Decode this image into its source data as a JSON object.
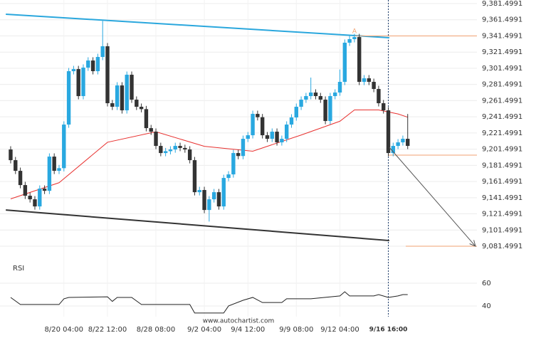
{
  "chart_data": {
    "type": "candlestick",
    "categories": [
      null,
      null,
      null,
      null,
      null,
      null,
      null,
      null,
      null,
      null,
      null,
      "8/20 04:00",
      null,
      null,
      null,
      null,
      null,
      null,
      null,
      null,
      "8/22 12:00",
      null,
      null,
      null,
      null,
      null,
      null,
      null,
      null,
      null,
      "8/28 08:00",
      null,
      null,
      null,
      null,
      null,
      null,
      null,
      null,
      null,
      "9/2 04:00",
      null,
      null,
      null,
      null,
      null,
      null,
      null,
      null,
      "9/4 12:00",
      null,
      null,
      null,
      null,
      null,
      null,
      null,
      null,
      null,
      "9/9 08:00",
      null,
      null,
      null,
      null,
      null,
      null,
      null,
      null,
      "9/12 04:00",
      null,
      null,
      null,
      null,
      null,
      null,
      null,
      null,
      null,
      "9/16 16:00",
      null,
      null,
      null,
      null
    ],
    "open": [
      9201.1,
      9187.9,
      9174.7,
      9157.1,
      9143.9,
      9139.5,
      9130.7,
      9152.7,
      9150.0,
      9192.3,
      9174.7,
      9178.0,
      9231.9,
      9297.9,
      9300.5,
      9267.1,
      9302.3,
      9311.1,
      9297.9,
      9315.5,
      9328.7,
      9258.3,
      9253.9,
      9280.3,
      9249.5,
      9293.5,
      9262.7,
      9253.9,
      9251.0,
      9227.5,
      9223.1,
      9205.5,
      9196.7,
      9199.0,
      9201.1,
      9205.5,
      9203.0,
      9201.1,
      9187.9,
      9148.3,
      9151.0,
      9126.3,
      9139.5,
      9148.3,
      9130.7,
      9165.9,
      9170.3,
      9196.7,
      9193.0,
      9214.3,
      9218.7,
      9245.1,
      9241.0,
      9218.7,
      9214.3,
      9223.1,
      9209.9,
      9214.3,
      9231.9,
      9240.7,
      9253.9,
      9262.7,
      9267.1,
      9271.5,
      9267.1,
      9262.7,
      9236.3,
      9267.1,
      9271.5,
      9284.7,
      9333.1,
      9337.5,
      9340.1,
      9284.7,
      9289.1,
      9284.7,
      9275.9,
      9258.3,
      9249.5,
      9196.7,
      9205.5,
      9209.9,
      9214.3
    ],
    "high": [
      9205.1,
      9191.9,
      9178.7,
      9161.1,
      9147.9,
      9143.5,
      9156.7,
      9156.7,
      9196.3,
      9196.3,
      9182.0,
      9235.9,
      9301.9,
      9304.5,
      9304.5,
      9306.3,
      9315.1,
      9315.1,
      9319.5,
      9360.0,
      9332.7,
      9262.3,
      9284.3,
      9284.3,
      9297.5,
      9297.5,
      9266.7,
      9257.9,
      9255.0,
      9231.5,
      9227.1,
      9209.5,
      9203.0,
      9205.1,
      9209.5,
      9209.5,
      9207.0,
      9205.1,
      9191.9,
      9155.0,
      9155.0,
      9143.5,
      9152.3,
      9152.3,
      9169.9,
      9174.3,
      9200.7,
      9200.7,
      9218.3,
      9222.7,
      9249.1,
      9249.1,
      9245.0,
      9222.7,
      9227.1,
      9227.1,
      9218.3,
      9235.9,
      9244.7,
      9257.9,
      9266.7,
      9271.1,
      9290.0,
      9275.5,
      9271.1,
      9266.7,
      9271.1,
      9275.5,
      9300.0,
      9337.1,
      9341.5,
      9344.1,
      9344.1,
      9293.1,
      9293.1,
      9288.7,
      9279.9,
      9262.3,
      9253.5,
      9209.5,
      9213.9,
      9218.3,
      9245.0
    ],
    "low": [
      9183.9,
      9170.7,
      9153.1,
      9139.9,
      9135.5,
      9126.7,
      9126.7,
      9146.0,
      9146.0,
      9170.7,
      9170.7,
      9174.0,
      9227.9,
      9293.9,
      9263.1,
      9263.1,
      9298.3,
      9293.9,
      9293.9,
      9311.5,
      9254.3,
      9249.9,
      9249.9,
      9245.5,
      9245.5,
      9258.7,
      9249.9,
      9247.0,
      9223.5,
      9219.1,
      9201.5,
      9192.7,
      9192.7,
      9195.0,
      9197.1,
      9199.0,
      9197.1,
      9183.9,
      9144.3,
      9144.3,
      9122.3,
      9112.0,
      9135.5,
      9126.7,
      9126.7,
      9161.9,
      9166.3,
      9189.0,
      9189.0,
      9210.3,
      9214.7,
      9237.0,
      9214.7,
      9210.3,
      9210.3,
      9205.9,
      9205.9,
      9210.3,
      9227.9,
      9236.7,
      9249.9,
      9258.7,
      9263.1,
      9263.1,
      9258.7,
      9232.3,
      9232.3,
      9263.1,
      9267.5,
      9280.7,
      9329.1,
      9333.5,
      9280.7,
      9280.7,
      9280.7,
      9271.9,
      9254.3,
      9245.5,
      9192.7,
      9192.7,
      9201.5,
      9205.9,
      9201.5
    ],
    "close": [
      9187.9,
      9174.7,
      9157.1,
      9143.9,
      9139.5,
      9130.7,
      9152.7,
      9150.0,
      9192.3,
      9174.7,
      9178.0,
      9231.9,
      9297.9,
      9300.5,
      9267.1,
      9302.3,
      9311.1,
      9297.9,
      9315.5,
      9328.7,
      9258.3,
      9253.9,
      9280.3,
      9249.5,
      9293.5,
      9262.7,
      9253.9,
      9251.0,
      9227.5,
      9223.1,
      9205.5,
      9196.7,
      9199.0,
      9201.1,
      9205.5,
      9203.0,
      9201.1,
      9187.9,
      9148.3,
      9151.0,
      9126.3,
      9139.5,
      9148.3,
      9130.7,
      9165.9,
      9170.3,
      9196.7,
      9193.0,
      9214.3,
      9218.7,
      9245.1,
      9241.0,
      9218.7,
      9214.3,
      9223.1,
      9209.9,
      9214.3,
      9231.9,
      9240.7,
      9253.9,
      9262.7,
      9267.1,
      9271.5,
      9267.1,
      9262.7,
      9236.3,
      9267.1,
      9271.5,
      9284.7,
      9333.1,
      9337.5,
      9340.1,
      9284.7,
      9289.1,
      9284.7,
      9275.9,
      9258.3,
      9249.5,
      9196.7,
      9205.5,
      9209.9,
      9214.3,
      9205.5
    ],
    "bull_color": "#29a8e0",
    "bear_color": "#333333",
    "xlim": [
      -2.2,
      96.3
    ],
    "ylim": [
      9064.8,
      9385.9
    ],
    "yticks": [
      {
        "value": 9081.4991,
        "label": "9,081.4991"
      },
      {
        "value": 9101.4991,
        "label": "9,101.4991"
      },
      {
        "value": 9121.4991,
        "label": "9,121.4991"
      },
      {
        "value": 9141.4991,
        "label": "9,141.4991"
      },
      {
        "value": 9161.4991,
        "label": "9,161.4991"
      },
      {
        "value": 9181.4991,
        "label": "9,181.4991"
      },
      {
        "value": 9201.4991,
        "label": "9,201.4991"
      },
      {
        "value": 9221.4991,
        "label": "9,221.4991"
      },
      {
        "value": 9241.4991,
        "label": "9,241.4991"
      },
      {
        "value": 9261.4991,
        "label": "9,261.4991"
      },
      {
        "value": 9281.4991,
        "label": "9,281.4991"
      },
      {
        "value": 9301.4991,
        "label": "9,301.4991"
      },
      {
        "value": 9321.4991,
        "label": "9,321.4991"
      },
      {
        "value": 9341.4991,
        "label": "9,341.4991"
      },
      {
        "value": 9361.4991,
        "label": "9,361.4991"
      },
      {
        "value": 9381.4991,
        "label": "9,381.4991"
      }
    ],
    "grid": true,
    "moving_average": {
      "color": "#e8312f",
      "x": [
        0,
        10,
        20,
        30,
        40,
        50,
        60,
        68,
        71,
        76,
        80,
        82
      ],
      "values": [
        9140,
        9160,
        9210,
        9223,
        9205,
        9199,
        9219,
        9236,
        9250,
        9250,
        9245,
        9241
      ]
    },
    "trendlines": [
      {
        "color": "#2aa7dd",
        "x": [
          -1,
          78.2
        ],
        "values": [
          9368.3,
          9339.3
        ]
      },
      {
        "color": "#333333",
        "x": [
          -1,
          78.2
        ],
        "values": [
          9126.3,
          9088.5
        ]
      }
    ],
    "levels": [
      {
        "color": "#f0a070",
        "x": [
          71,
          96.3
        ],
        "value": 9341.5
      },
      {
        "color": "#f0a070",
        "x": [
          78,
          96.3
        ],
        "value": 9194.1
      },
      {
        "color": "#f0a070",
        "x": [
          81.6,
          96.3
        ],
        "value": 9081.4991
      }
    ],
    "arrow": {
      "color": "#555555",
      "x": [
        78.2,
        96
      ],
      "values": [
        9203.7,
        9081.4991
      ]
    },
    "annotation": {
      "text": "A",
      "x": 71,
      "value": 9347
    },
    "rsi": {
      "label": "RSI",
      "color": "#222222",
      "ylim": [
        30.6,
        77.5
      ],
      "yticks": [
        60,
        40
      ],
      "x": [
        0,
        2,
        10,
        11,
        12,
        20,
        21,
        22,
        25,
        27,
        37,
        38,
        44,
        45,
        48,
        50,
        52,
        56,
        57,
        62,
        68,
        69,
        70,
        75,
        76,
        78,
        80,
        81,
        82
      ],
      "values": [
        47.5,
        41.3,
        41.3,
        46.3,
        47.5,
        48,
        44,
        47.5,
        47.5,
        41.3,
        41.3,
        33.8,
        33.8,
        40,
        45,
        47.5,
        43,
        43,
        46.3,
        46.3,
        48.8,
        52.5,
        48.8,
        48.8,
        50,
        47.5,
        48.8,
        50,
        50
      ]
    },
    "footer": "www.autochartist.com"
  }
}
